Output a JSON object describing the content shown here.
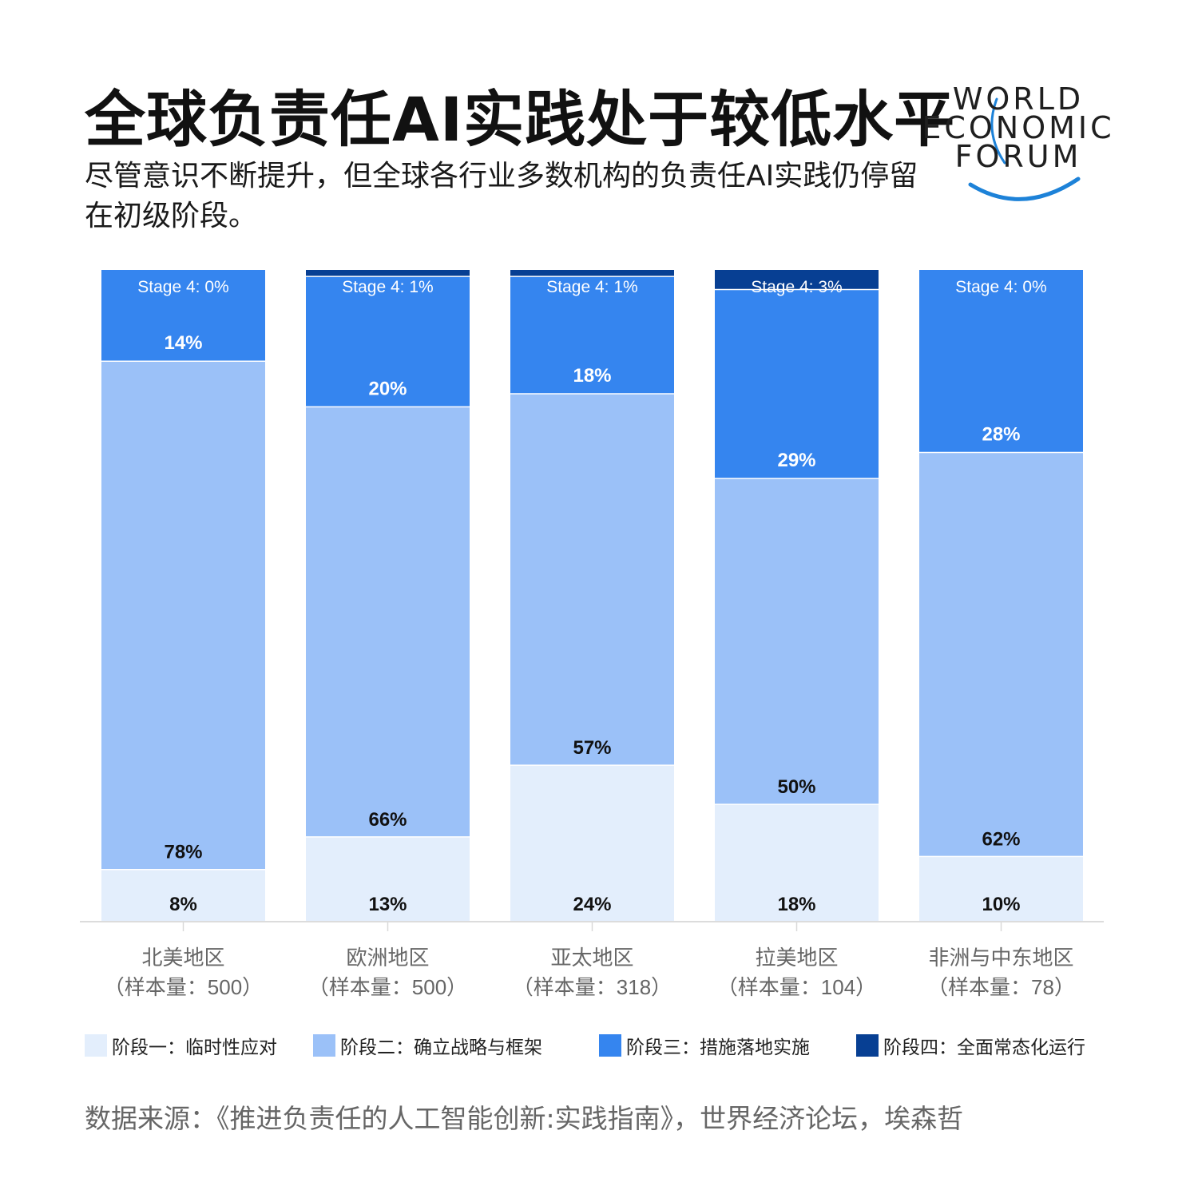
{
  "title": "全球负责任AI实践处于较低水平",
  "subtitle": "尽管意识不断提升，但全球各行业多数机构的负责任AI实践仍停留在初级阶段。",
  "logo": {
    "line1": "WORLD",
    "line2": "ECONOMIC",
    "line3": "FORUM"
  },
  "colors": {
    "stage1": "#e3eefc",
    "stage2": "#9bc1f8",
    "stage3": "#3585ef",
    "stage4": "#073f93",
    "label_dark": "#111111",
    "label_light": "#ffffff",
    "axis_text": "#666666"
  },
  "chart_data": {
    "type": "bar",
    "stacked": true,
    "categories": [
      "北美地区",
      "欧洲地区",
      "亚太地区",
      "拉美地区",
      "非洲与中东地区"
    ],
    "sample_labels": [
      "（样本量：500）",
      "（样本量：500）",
      "（样本量：318）",
      "（样本量：104）",
      "（样本量：78）"
    ],
    "series": [
      {
        "name": "阶段一：临时性应对",
        "values": [
          8,
          13,
          24,
          18,
          10
        ]
      },
      {
        "name": "阶段二：确立战略与框架",
        "values": [
          78,
          66,
          57,
          50,
          62
        ]
      },
      {
        "name": "阶段三：措施落地实施",
        "values": [
          14,
          20,
          18,
          29,
          28
        ]
      },
      {
        "name": "阶段四：全面常态化运行",
        "values": [
          0,
          1,
          1,
          3,
          0
        ]
      }
    ],
    "stage4_prefix": "Stage 4: ",
    "ylim": [
      0,
      100
    ],
    "legend_position": "bottom"
  },
  "source": "数据来源：《推进负责任的人工智能创新:实践指南》，世界经济论坛，埃森哲"
}
